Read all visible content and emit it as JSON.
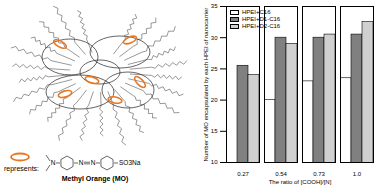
{
  "chart_data": {
    "type": "bar",
    "x_label": "The ratio of [COOH]/[N]",
    "y_label": "Number of MO encapsulated by each HPEI of nanocarrier",
    "categories": [
      "0.27",
      "0.54",
      "0.73",
      "1.0"
    ],
    "series": [
      {
        "name": "HPEI+C16",
        "color": "#ffffff",
        "values": [
          null,
          20,
          23,
          23.5
        ]
      },
      {
        "name": "HPEI+D1-C16",
        "color": "#808080",
        "values": [
          25.5,
          30,
          30,
          30.5
        ]
      },
      {
        "name": "HPEI+D2-C16",
        "color": "#d0d0d0",
        "values": [
          24,
          29,
          30.5,
          32.5
        ]
      }
    ],
    "ylim": [
      10,
      35
    ],
    "yticks": [
      10,
      15,
      20,
      25,
      30,
      35
    ],
    "legend": "top-left"
  },
  "diagram": {
    "legend_text": "represents:",
    "molecule_name": "Methyl Orange (MO)",
    "structure_labels": [
      "N",
      "N",
      "N",
      "SO3Na"
    ]
  }
}
